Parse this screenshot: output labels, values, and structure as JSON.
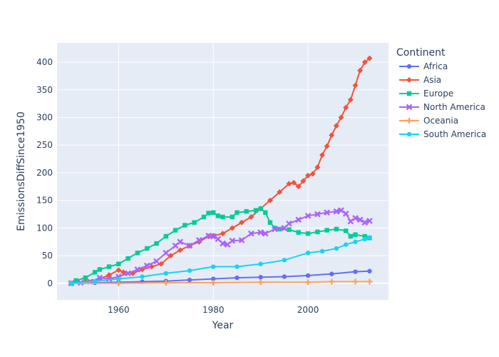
{
  "chart_data": {
    "type": "line",
    "title": "",
    "xlabel": "Year",
    "ylabel": "EmissionsDiffSince1950",
    "xlim": [
      1947,
      2017
    ],
    "ylim": [
      -30,
      435
    ],
    "x_ticks": [
      1960,
      1980,
      2000
    ],
    "y_ticks": [
      0,
      50,
      100,
      150,
      200,
      250,
      300,
      350,
      400
    ],
    "grid": true,
    "legend_title": "Continent",
    "legend_position": "right",
    "series": [
      {
        "name": "Africa",
        "color": "#636efa",
        "marker": "circle",
        "points": [
          [
            1950,
            0
          ],
          [
            1955,
            1
          ],
          [
            1960,
            2
          ],
          [
            1965,
            3
          ],
          [
            1970,
            4
          ],
          [
            1975,
            6
          ],
          [
            1980,
            8
          ],
          [
            1985,
            10
          ],
          [
            1990,
            11
          ],
          [
            1995,
            12
          ],
          [
            2000,
            14
          ],
          [
            2005,
            17
          ],
          [
            2010,
            21
          ],
          [
            2013,
            22
          ]
        ]
      },
      {
        "name": "Asia",
        "color": "#ef553b",
        "marker": "diamond",
        "points": [
          [
            1950,
            0
          ],
          [
            1953,
            3
          ],
          [
            1956,
            8
          ],
          [
            1958,
            15
          ],
          [
            1960,
            24
          ],
          [
            1961,
            20
          ],
          [
            1963,
            18
          ],
          [
            1965,
            25
          ],
          [
            1967,
            30
          ],
          [
            1969,
            35
          ],
          [
            1971,
            50
          ],
          [
            1973,
            60
          ],
          [
            1975,
            68
          ],
          [
            1977,
            75
          ],
          [
            1979,
            85
          ],
          [
            1980,
            86
          ],
          [
            1982,
            90
          ],
          [
            1984,
            100
          ],
          [
            1986,
            110
          ],
          [
            1988,
            120
          ],
          [
            1990,
            135
          ],
          [
            1992,
            150
          ],
          [
            1994,
            165
          ],
          [
            1996,
            180
          ],
          [
            1997,
            182
          ],
          [
            1998,
            175
          ],
          [
            1999,
            185
          ],
          [
            2000,
            195
          ],
          [
            2001,
            198
          ],
          [
            2002,
            210
          ],
          [
            2003,
            232
          ],
          [
            2004,
            248
          ],
          [
            2005,
            268
          ],
          [
            2006,
            285
          ],
          [
            2007,
            300
          ],
          [
            2008,
            318
          ],
          [
            2009,
            332
          ],
          [
            2010,
            358
          ],
          [
            2011,
            385
          ],
          [
            2012,
            400
          ],
          [
            2013,
            407
          ]
        ]
      },
      {
        "name": "Europe",
        "color": "#00cc96",
        "marker": "square",
        "points": [
          [
            1950,
            0
          ],
          [
            1951,
            5
          ],
          [
            1953,
            10
          ],
          [
            1955,
            20
          ],
          [
            1956,
            25
          ],
          [
            1958,
            30
          ],
          [
            1960,
            35
          ],
          [
            1962,
            45
          ],
          [
            1964,
            55
          ],
          [
            1966,
            63
          ],
          [
            1968,
            72
          ],
          [
            1970,
            85
          ],
          [
            1972,
            96
          ],
          [
            1974,
            105
          ],
          [
            1976,
            110
          ],
          [
            1978,
            120
          ],
          [
            1979,
            127
          ],
          [
            1980,
            128
          ],
          [
            1981,
            122
          ],
          [
            1982,
            120
          ],
          [
            1984,
            120
          ],
          [
            1985,
            128
          ],
          [
            1987,
            130
          ],
          [
            1989,
            132
          ],
          [
            1990,
            135
          ],
          [
            1991,
            128
          ],
          [
            1992,
            110
          ],
          [
            1993,
            100
          ],
          [
            1994,
            98
          ],
          [
            1996,
            97
          ],
          [
            1998,
            92
          ],
          [
            2000,
            90
          ],
          [
            2002,
            93
          ],
          [
            2004,
            96
          ],
          [
            2006,
            98
          ],
          [
            2008,
            95
          ],
          [
            2009,
            85
          ],
          [
            2010,
            88
          ],
          [
            2012,
            85
          ],
          [
            2013,
            82
          ]
        ]
      },
      {
        "name": "North America",
        "color": "#ab63fa",
        "marker": "x",
        "points": [
          [
            1950,
            0
          ],
          [
            1952,
            1
          ],
          [
            1954,
            3
          ],
          [
            1956,
            10
          ],
          [
            1958,
            8
          ],
          [
            1960,
            12
          ],
          [
            1962,
            18
          ],
          [
            1964,
            25
          ],
          [
            1966,
            32
          ],
          [
            1968,
            40
          ],
          [
            1970,
            55
          ],
          [
            1972,
            68
          ],
          [
            1973,
            75
          ],
          [
            1975,
            68
          ],
          [
            1977,
            78
          ],
          [
            1979,
            86
          ],
          [
            1980,
            85
          ],
          [
            1981,
            80
          ],
          [
            1982,
            72
          ],
          [
            1983,
            70
          ],
          [
            1984,
            77
          ],
          [
            1986,
            78
          ],
          [
            1988,
            90
          ],
          [
            1990,
            92
          ],
          [
            1991,
            90
          ],
          [
            1993,
            98
          ],
          [
            1995,
            100
          ],
          [
            1996,
            108
          ],
          [
            1998,
            115
          ],
          [
            2000,
            122
          ],
          [
            2002,
            125
          ],
          [
            2004,
            128
          ],
          [
            2006,
            130
          ],
          [
            2007,
            132
          ],
          [
            2008,
            126
          ],
          [
            2009,
            112
          ],
          [
            2010,
            118
          ],
          [
            2011,
            115
          ],
          [
            2012,
            110
          ],
          [
            2013,
            113
          ]
        ]
      },
      {
        "name": "Oceania",
        "color": "#ffa15a",
        "marker": "cross",
        "points": [
          [
            1950,
            0
          ],
          [
            1960,
            0
          ],
          [
            1970,
            1
          ],
          [
            1980,
            1
          ],
          [
            1990,
            2
          ],
          [
            2000,
            2
          ],
          [
            2005,
            3
          ],
          [
            2010,
            3
          ],
          [
            2013,
            3
          ]
        ]
      },
      {
        "name": "South America",
        "color": "#19d3f3",
        "marker": "circle",
        "points": [
          [
            1950,
            0
          ],
          [
            1955,
            4
          ],
          [
            1960,
            8
          ],
          [
            1965,
            12
          ],
          [
            1970,
            18
          ],
          [
            1975,
            23
          ],
          [
            1980,
            30
          ],
          [
            1985,
            30
          ],
          [
            1990,
            35
          ],
          [
            1995,
            42
          ],
          [
            2000,
            55
          ],
          [
            2003,
            58
          ],
          [
            2006,
            63
          ],
          [
            2008,
            70
          ],
          [
            2010,
            75
          ],
          [
            2012,
            80
          ],
          [
            2013,
            83
          ]
        ]
      }
    ]
  }
}
